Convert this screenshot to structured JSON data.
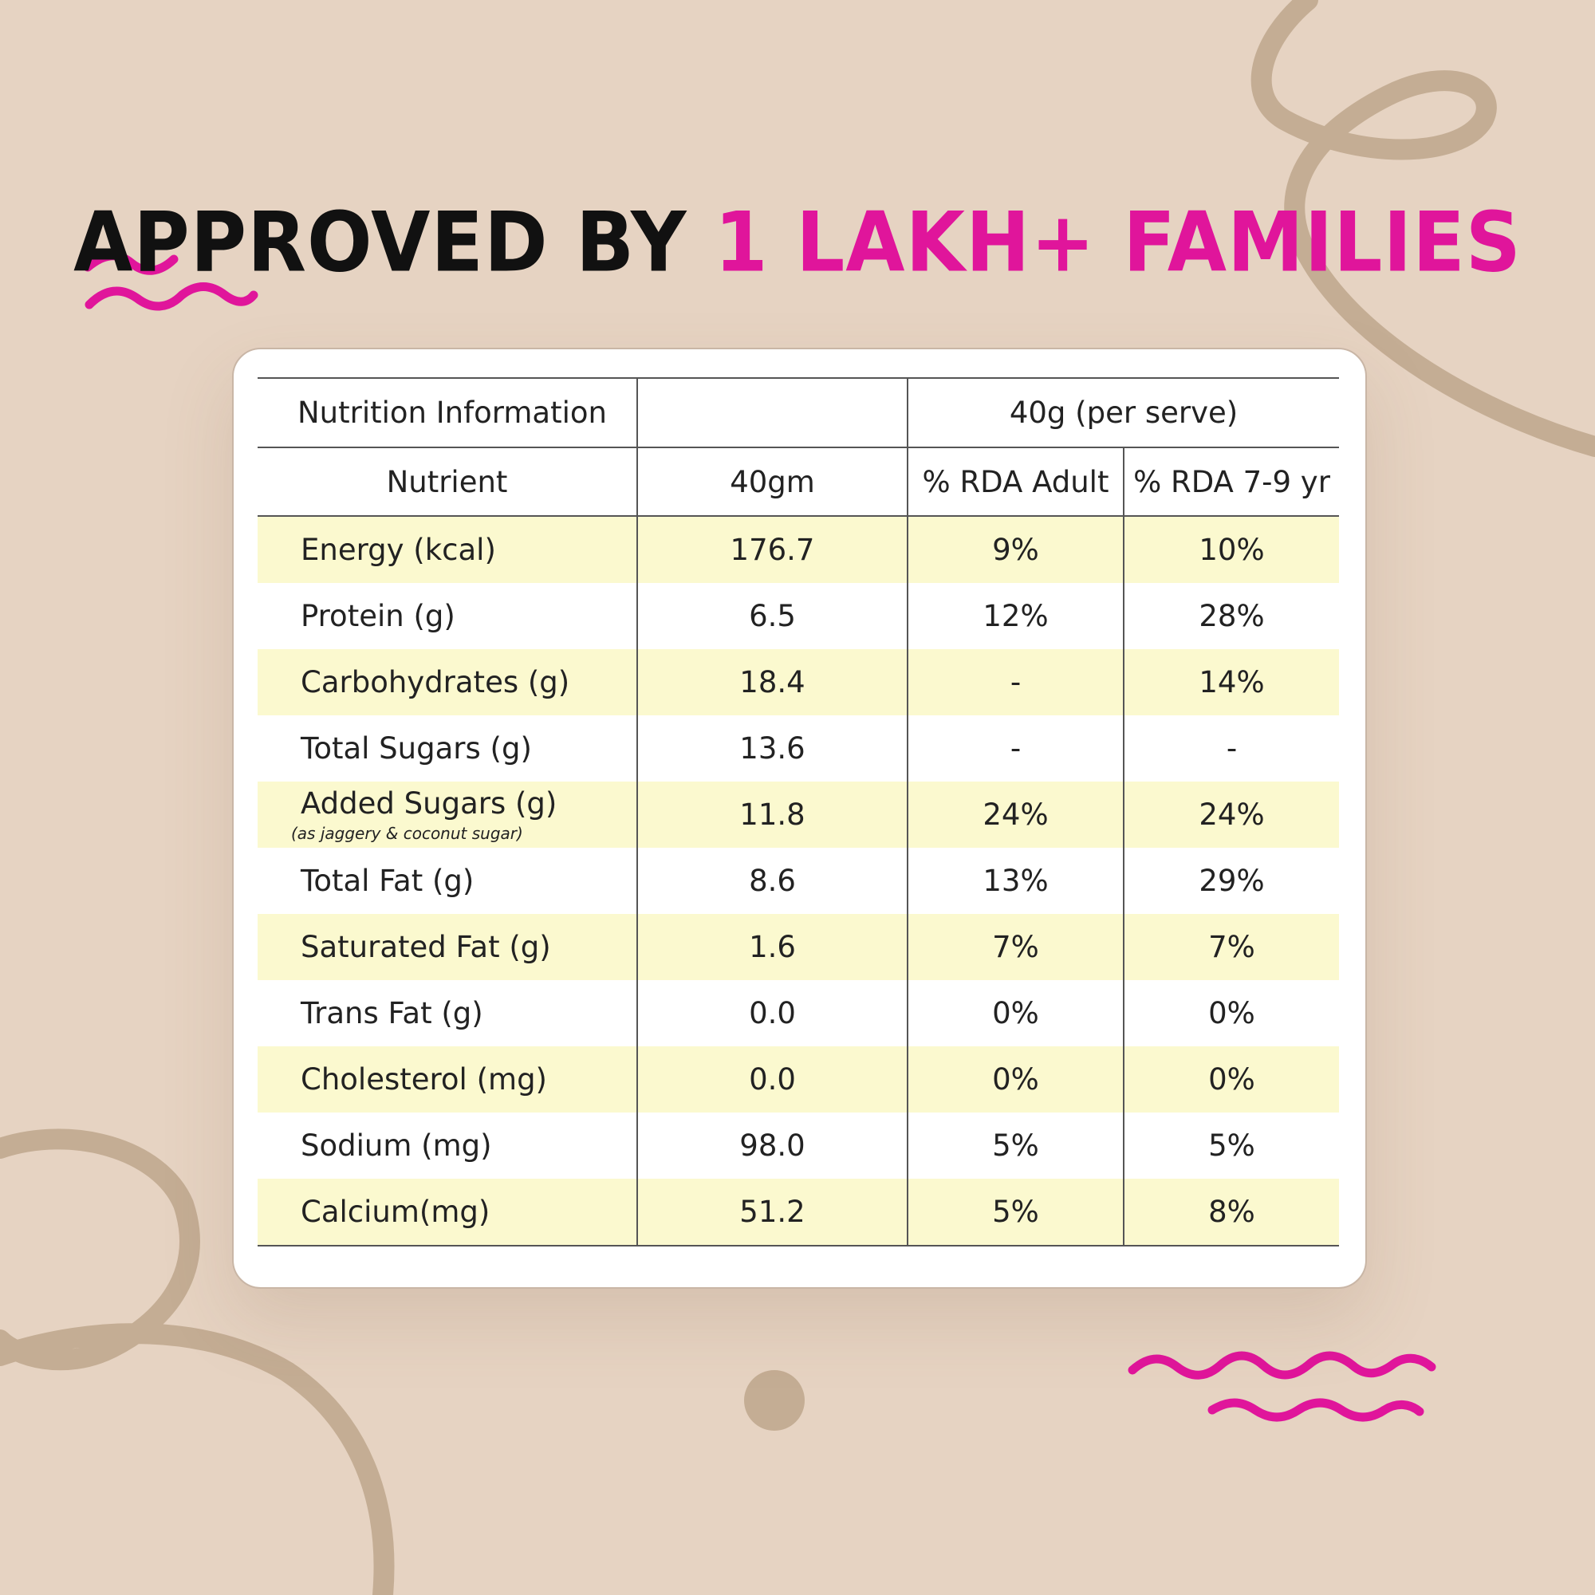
{
  "headline": {
    "part1": "APPROVED BY",
    "part2": "1 LAKH+ FAMILIES"
  },
  "colors": {
    "background": "#e6d3c2",
    "accent_pink": "#e0159b",
    "row_shade": "#fbf9cf",
    "squiggle_brown": "#c4ad94"
  },
  "table": {
    "title": "Nutrition Information",
    "serving_header": "40g (per serve)",
    "columns": [
      "Nutrient",
      "40gm",
      "% RDA Adult",
      "% RDA 7-9 yr"
    ],
    "rows": [
      {
        "nutrient": "Energy (kcal)",
        "amount": "176.7",
        "rda_adult": "9%",
        "rda_child": "10%"
      },
      {
        "nutrient": "Protein (g)",
        "amount": "6.5",
        "rda_adult": "12%",
        "rda_child": "28%"
      },
      {
        "nutrient": "Carbohydrates (g)",
        "amount": "18.4",
        "rda_adult": "-",
        "rda_child": "14%"
      },
      {
        "nutrient": "Total Sugars (g)",
        "amount": "13.6",
        "rda_adult": "-",
        "rda_child": "-"
      },
      {
        "nutrient": "Added Sugars (g)",
        "note": "(as jaggery & coconut sugar)",
        "amount": "11.8",
        "rda_adult": "24%",
        "rda_child": "24%"
      },
      {
        "nutrient": "Total Fat (g)",
        "amount": "8.6",
        "rda_adult": "13%",
        "rda_child": "29%"
      },
      {
        "nutrient": "Saturated Fat (g)",
        "amount": "1.6",
        "rda_adult": "7%",
        "rda_child": "7%"
      },
      {
        "nutrient": "Trans Fat (g)",
        "amount": "0.0",
        "rda_adult": "0%",
        "rda_child": "0%"
      },
      {
        "nutrient": "Cholesterol (mg)",
        "amount": "0.0",
        "rda_adult": "0%",
        "rda_child": "0%"
      },
      {
        "nutrient": "Sodium (mg)",
        "amount": "98.0",
        "rda_adult": "5%",
        "rda_child": "5%"
      },
      {
        "nutrient": "Calcium(mg)",
        "amount": "51.2",
        "rda_adult": "5%",
        "rda_child": "8%"
      }
    ]
  }
}
